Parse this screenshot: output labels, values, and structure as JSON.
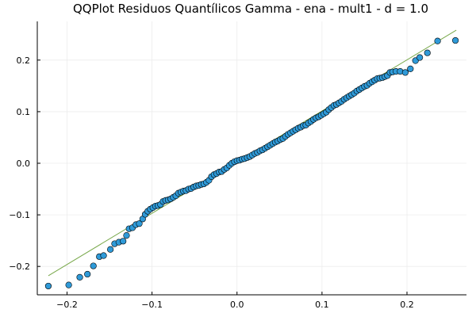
{
  "chart_data": {
    "type": "scatter",
    "title": "QQPlot Residuos Quantílicos Gamma - ena - mult1 - d = 1.0",
    "xlabel": "",
    "ylabel": "",
    "xlim": [
      -0.235,
      0.27
    ],
    "ylim": [
      -0.255,
      0.275
    ],
    "x_ticks": [
      -0.2,
      -0.1,
      0.0,
      0.1,
      0.2
    ],
    "y_ticks": [
      -0.2,
      -0.1,
      0.0,
      0.1,
      0.2
    ],
    "x_tick_labels": [
      "−0.2",
      "−0.1",
      "0.0",
      "0.1",
      "0.2"
    ],
    "y_tick_labels": [
      "−0.2",
      "−0.1",
      "0.0",
      "0.1",
      "0.2"
    ],
    "grid": true,
    "legend": "none",
    "colors": {
      "points": "#2f9ad8",
      "reference_line": "#78a84a",
      "grid": "#ececec"
    },
    "reference_line": {
      "x": [
        -0.222,
        0.258
      ],
      "y": [
        -0.218,
        0.258
      ]
    },
    "series": [
      {
        "points": [
          [
            -0.222,
            -0.238
          ],
          [
            -0.198,
            -0.236
          ],
          [
            -0.185,
            -0.221
          ],
          [
            -0.176,
            -0.215
          ],
          [
            -0.169,
            -0.199
          ],
          [
            -0.162,
            -0.181
          ],
          [
            -0.157,
            -0.179
          ],
          [
            -0.149,
            -0.167
          ],
          [
            -0.144,
            -0.156
          ],
          [
            -0.139,
            -0.153
          ],
          [
            -0.134,
            -0.151
          ],
          [
            -0.13,
            -0.14
          ],
          [
            -0.127,
            -0.127
          ],
          [
            -0.123,
            -0.125
          ],
          [
            -0.119,
            -0.119
          ],
          [
            -0.115,
            -0.117
          ],
          [
            -0.111,
            -0.108
          ],
          [
            -0.108,
            -0.099
          ],
          [
            -0.105,
            -0.093
          ],
          [
            -0.102,
            -0.089
          ],
          [
            -0.099,
            -0.086
          ],
          [
            -0.096,
            -0.083
          ],
          [
            -0.093,
            -0.082
          ],
          [
            -0.09,
            -0.08
          ],
          [
            -0.087,
            -0.074
          ],
          [
            -0.084,
            -0.072
          ],
          [
            -0.081,
            -0.071
          ],
          [
            -0.078,
            -0.069
          ],
          [
            -0.075,
            -0.066
          ],
          [
            -0.072,
            -0.063
          ],
          [
            -0.069,
            -0.058
          ],
          [
            -0.066,
            -0.056
          ],
          [
            -0.063,
            -0.054
          ],
          [
            -0.06,
            -0.053
          ],
          [
            -0.057,
            -0.05
          ],
          [
            -0.054,
            -0.049
          ],
          [
            -0.051,
            -0.046
          ],
          [
            -0.048,
            -0.044
          ],
          [
            -0.045,
            -0.043
          ],
          [
            -0.042,
            -0.041
          ],
          [
            -0.039,
            -0.04
          ],
          [
            -0.036,
            -0.037
          ],
          [
            -0.033,
            -0.033
          ],
          [
            -0.03,
            -0.026
          ],
          [
            -0.027,
            -0.022
          ],
          [
            -0.024,
            -0.02
          ],
          [
            -0.021,
            -0.017
          ],
          [
            -0.018,
            -0.016
          ],
          [
            -0.015,
            -0.012
          ],
          [
            -0.012,
            -0.009
          ],
          [
            -0.009,
            -0.004
          ],
          [
            -0.006,
            0.0
          ],
          [
            -0.003,
            0.003
          ],
          [
            0.0,
            0.005
          ],
          [
            0.003,
            0.006
          ],
          [
            0.006,
            0.008
          ],
          [
            0.009,
            0.009
          ],
          [
            0.012,
            0.011
          ],
          [
            0.015,
            0.013
          ],
          [
            0.018,
            0.016
          ],
          [
            0.021,
            0.019
          ],
          [
            0.024,
            0.021
          ],
          [
            0.027,
            0.024
          ],
          [
            0.03,
            0.026
          ],
          [
            0.033,
            0.029
          ],
          [
            0.036,
            0.032
          ],
          [
            0.039,
            0.035
          ],
          [
            0.042,
            0.038
          ],
          [
            0.045,
            0.041
          ],
          [
            0.048,
            0.043
          ],
          [
            0.051,
            0.046
          ],
          [
            0.054,
            0.048
          ],
          [
            0.057,
            0.052
          ],
          [
            0.06,
            0.056
          ],
          [
            0.063,
            0.059
          ],
          [
            0.066,
            0.062
          ],
          [
            0.069,
            0.065
          ],
          [
            0.072,
            0.068
          ],
          [
            0.075,
            0.07
          ],
          [
            0.078,
            0.073
          ],
          [
            0.081,
            0.074
          ],
          [
            0.084,
            0.078
          ],
          [
            0.087,
            0.081
          ],
          [
            0.09,
            0.085
          ],
          [
            0.093,
            0.088
          ],
          [
            0.096,
            0.09
          ],
          [
            0.099,
            0.093
          ],
          [
            0.102,
            0.096
          ],
          [
            0.105,
            0.099
          ],
          [
            0.108,
            0.104
          ],
          [
            0.111,
            0.108
          ],
          [
            0.114,
            0.112
          ],
          [
            0.117,
            0.114
          ],
          [
            0.12,
            0.117
          ],
          [
            0.123,
            0.12
          ],
          [
            0.126,
            0.124
          ],
          [
            0.129,
            0.127
          ],
          [
            0.132,
            0.13
          ],
          [
            0.135,
            0.133
          ],
          [
            0.138,
            0.136
          ],
          [
            0.141,
            0.14
          ],
          [
            0.144,
            0.143
          ],
          [
            0.147,
            0.146
          ],
          [
            0.15,
            0.149
          ],
          [
            0.153,
            0.151
          ],
          [
            0.156,
            0.155
          ],
          [
            0.159,
            0.158
          ],
          [
            0.162,
            0.161
          ],
          [
            0.165,
            0.164
          ],
          [
            0.168,
            0.165
          ],
          [
            0.171,
            0.166
          ],
          [
            0.174,
            0.168
          ],
          [
            0.177,
            0.17
          ],
          [
            0.18,
            0.176
          ],
          [
            0.183,
            0.177
          ],
          [
            0.187,
            0.178
          ],
          [
            0.192,
            0.178
          ],
          [
            0.198,
            0.176
          ],
          [
            0.204,
            0.183
          ],
          [
            0.21,
            0.199
          ],
          [
            0.215,
            0.205
          ],
          [
            0.224,
            0.214
          ],
          [
            0.236,
            0.237
          ],
          [
            0.257,
            0.238
          ]
        ]
      }
    ]
  }
}
